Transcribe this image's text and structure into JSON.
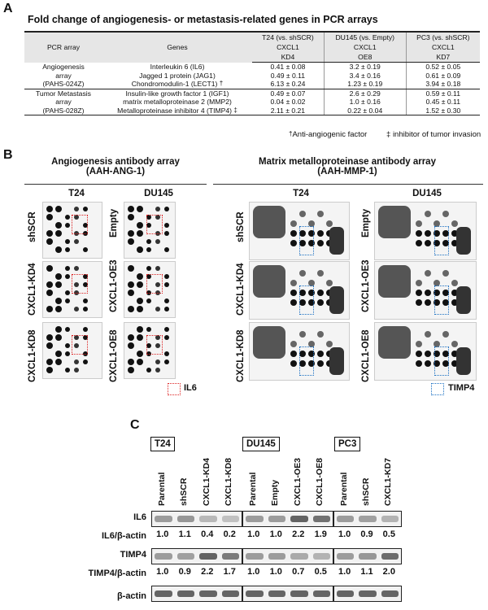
{
  "panelA": {
    "letter": "A",
    "title": "Fold change of angiogenesis- or metastasis-related genes in PCR arrays",
    "headers": {
      "array": "PCR array",
      "genes": "Genes",
      "t24": "T24 (vs. shSCR)",
      "du145": "DU145 (vs. Empty)",
      "pc3": "PC3 (vs. shSCR)",
      "t24_sub1": "CXCL1",
      "t24_sub2": "KD4",
      "du145_sub1": "CXCL1",
      "du145_sub2": "OE8",
      "pc3_sub1": "CXCL1",
      "pc3_sub2": "KD7"
    },
    "groups": [
      {
        "array_lines": [
          "Angiogenesis",
          "array",
          "(PAHS-024Z)"
        ],
        "rows": [
          {
            "gene": "Interleukin 6 (IL6)",
            "mark": "",
            "t24": "0.41 ± 0.08",
            "du145": "3.2 ± 0.19",
            "pc3": "0.52 ± 0.05"
          },
          {
            "gene": "Jagged 1 protein (JAG1)",
            "mark": "",
            "t24": "0.49 ± 0.11",
            "du145": "3.4 ± 0.16",
            "pc3": "0.61 ± 0.09"
          },
          {
            "gene": "Chondromodulin-1 (LECT1)",
            "mark": "†",
            "t24": "6.13 ± 0.24",
            "du145": "1.23 ± 0.19",
            "pc3": "3.94 ± 0.18"
          }
        ]
      },
      {
        "array_lines": [
          "Tumor Metastasis",
          "array",
          "(PAHS-028Z)"
        ],
        "rows": [
          {
            "gene": "Insulin-like growth factor 1 (IGF1)",
            "mark": "",
            "t24": "0.49 ± 0.07",
            "du145": "2.6 ± 0.29",
            "pc3": "0.59 ± 0.11"
          },
          {
            "gene": "matrix metalloproteinase 2 (MMP2)",
            "mark": "",
            "t24": "0.04 ± 0.02",
            "du145": "1.0 ± 0.16",
            "pc3": "0.45 ± 0.11"
          },
          {
            "gene": "Metalloproteinase inhibitor 4 (TIMP4)",
            "mark": "‡",
            "t24": "2.11 ± 0.21",
            "du145": "0.22 ± 0.04",
            "pc3": "1.52 ± 0.30"
          }
        ]
      }
    ],
    "footnote1_symbol": "†",
    "footnote1_text": "Anti-angiogenic factor",
    "footnote2_symbol": "‡",
    "footnote2_text": "inhibitor of tumor invasion"
  },
  "panelB": {
    "letter": "B",
    "ang_title": "Angiogenesis antibody array",
    "ang_sub": "(AAH-ANG-1)",
    "mmp_title": "Matrix metalloproteinase antibody array",
    "mmp_sub": "(AAH-MMP-1)",
    "t24": "T24",
    "du145": "DU145",
    "t24_rows": [
      "shSCR",
      "CXCL1-KD4",
      "CXCL1-KD8"
    ],
    "du145_rows": [
      "Empty",
      "CXCL1-OE3",
      "CXCL1-OE8"
    ],
    "legend_il6": "IL6",
    "legend_timp4": "TIMP4"
  },
  "panelC": {
    "letter": "C",
    "cells": [
      "T24",
      "DU145",
      "PC3"
    ],
    "lanes": [
      [
        "Parental",
        "shSCR",
        "CXCL1-KD4",
        "CXCL1-KD8"
      ],
      [
        "Parental",
        "Empty",
        "CXCL1-OE3",
        "CXCL1-OE8"
      ],
      [
        "Parental",
        "shSCR",
        "CXCL1-KD7"
      ]
    ],
    "row_il6": "IL6",
    "row_il6_ratio": "IL6/β-actin",
    "row_timp4": "TIMP4",
    "row_timp4_ratio": "TIMP4/β-actin",
    "row_actin": "β-actin",
    "il6_values": [
      "1.0",
      "1.1",
      "0.4",
      "0.2",
      "1.0",
      "1.0",
      "2.2",
      "1.9",
      "1.0",
      "0.9",
      "0.5"
    ],
    "timp4_values": [
      "1.0",
      "0.9",
      "2.2",
      "1.7",
      "1.0",
      "1.0",
      "0.7",
      "0.5",
      "1.0",
      "1.1",
      "2.0"
    ]
  }
}
